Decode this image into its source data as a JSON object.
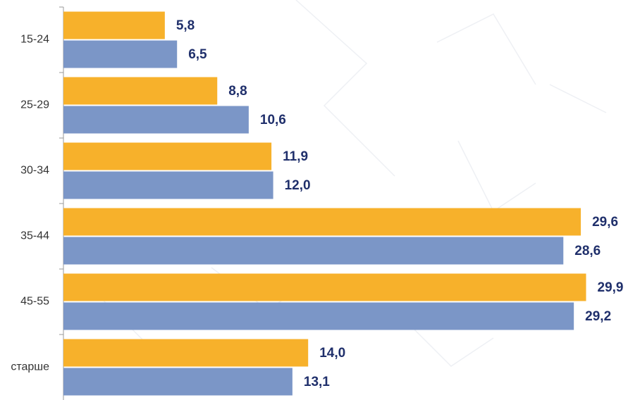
{
  "chart_data": {
    "type": "bar",
    "orientation": "horizontal",
    "categories": [
      "15-24",
      "25-29",
      "30-34",
      "35-44",
      "45-55",
      "старше"
    ],
    "series": [
      {
        "color": "#f7b12b",
        "values": [
          5.8,
          8.8,
          11.9,
          29.6,
          29.9,
          14.0
        ],
        "value_labels": [
          "5,8",
          "8,8",
          "11,9",
          "29,6",
          "29,9",
          "14,0"
        ]
      },
      {
        "color": "#7b96c7",
        "values": [
          6.5,
          10.6,
          12.0,
          28.6,
          29.2,
          13.1
        ],
        "value_labels": [
          "6,5",
          "10,6",
          "12,0",
          "28,6",
          "29,2",
          "13,1"
        ]
      }
    ],
    "xlim": [
      0,
      32
    ]
  }
}
